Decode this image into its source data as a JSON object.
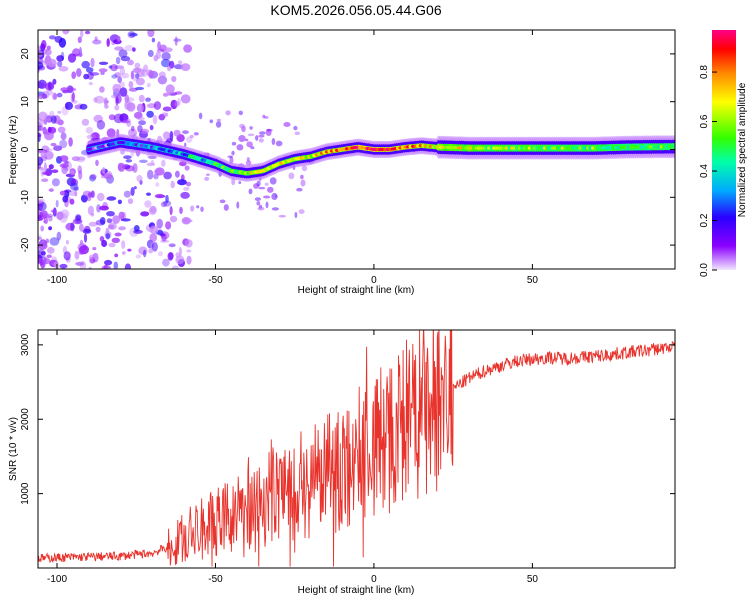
{
  "title": "KOM5.2026.056.05.44.G06",
  "chart_data": [
    {
      "type": "heatmap",
      "xlabel": "Height of straight line (km)",
      "ylabel": "Frequency (Hz)",
      "xlim": [
        -106,
        95
      ],
      "ylim": [
        -25,
        25
      ],
      "xticks": [
        -100,
        -50,
        0,
        50
      ],
      "yticks": [
        -20,
        -10,
        0,
        10,
        20
      ],
      "colorbar": {
        "label": "Normalized spectral amplitude",
        "range": [
          0,
          0.97
        ],
        "ticks": [
          0.0,
          0.2,
          0.4,
          0.6,
          0.8
        ]
      },
      "ridge": {
        "height_km": [
          -90,
          -80,
          -70,
          -60,
          -55,
          -50,
          -45,
          -40,
          -35,
          -30,
          -25,
          -20,
          -15,
          -10,
          -5,
          0,
          5,
          10,
          15,
          20,
          30,
          40,
          50,
          60,
          70,
          80,
          95
        ],
        "frequency_hz": [
          0,
          1.5,
          0.5,
          -1,
          -2,
          -3,
          -4.5,
          -5,
          -4.5,
          -3,
          -2,
          -1.5,
          -0.5,
          0,
          0.5,
          0,
          0,
          0.5,
          0.8,
          0.5,
          0.3,
          0.3,
          0.3,
          0.3,
          0.3,
          0.5,
          0.6
        ],
        "amplitude": [
          0.15,
          0.2,
          0.25,
          0.35,
          0.4,
          0.45,
          0.5,
          0.6,
          0.7,
          0.65,
          0.6,
          0.65,
          0.75,
          0.85,
          0.9,
          0.95,
          0.9,
          0.85,
          0.8,
          0.7,
          0.65,
          0.6,
          0.6,
          0.55,
          0.55,
          0.55,
          0.55
        ]
      }
    },
    {
      "type": "line",
      "xlabel": "Height of straight line (km)",
      "ylabel": "SNR (10 * v/v)",
      "xlim": [
        -106,
        95
      ],
      "ylim": [
        0,
        3200
      ],
      "xticks": [
        -100,
        -50,
        0,
        50
      ],
      "yticks": [
        1000,
        2000,
        3000
      ],
      "series": [
        {
          "name": "SNR",
          "color": "#e8322b",
          "x": [
            -106,
            -100,
            -90,
            -80,
            -70,
            -65,
            -60,
            -55,
            -50,
            -45,
            -40,
            -35,
            -30,
            -25,
            -20,
            -15,
            -10,
            -5,
            0,
            5,
            10,
            15,
            20,
            25,
            30,
            35,
            40,
            45,
            50,
            55,
            60,
            65,
            70,
            75,
            80,
            85,
            90,
            95
          ],
          "y": [
            130,
            140,
            150,
            160,
            200,
            280,
            400,
            520,
            600,
            700,
            800,
            900,
            1050,
            1100,
            1150,
            1250,
            1350,
            1500,
            1650,
            1780,
            1900,
            2050,
            2250,
            2420,
            2550,
            2650,
            2720,
            2780,
            2810,
            2830,
            2820,
            2830,
            2850,
            2870,
            2900,
            2920,
            2950,
            2980
          ]
        }
      ]
    }
  ]
}
